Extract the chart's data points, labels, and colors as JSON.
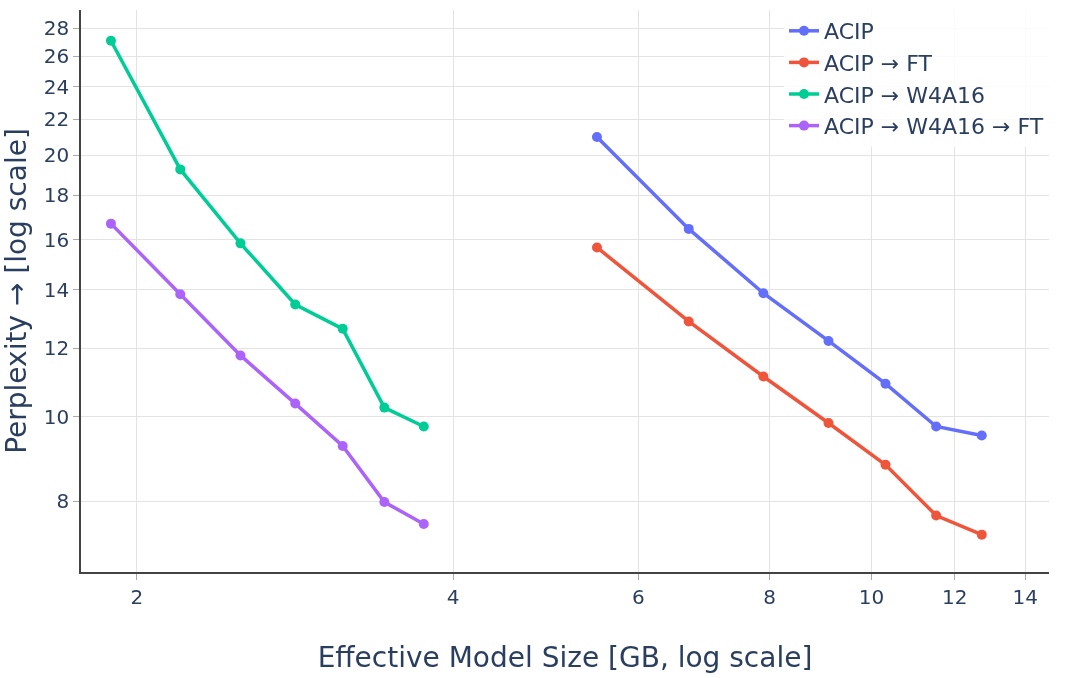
{
  "chart_data": {
    "type": "line",
    "xlabel": "Effective Model Size [GB, log scale]",
    "ylabel": "Perplexity → [log scale]",
    "log": "xy",
    "grid": true,
    "legend": "top right",
    "marker": "circle",
    "line_style": "solid",
    "xlim": [
      1.77,
      14.75
    ],
    "xticks": [
      2,
      4,
      6,
      8,
      10,
      12,
      14
    ],
    "ylim": [
      6.63,
      29.4
    ],
    "yticks": [
      8,
      10,
      12,
      14,
      16,
      18,
      20,
      22,
      24,
      26,
      28
    ],
    "series": [
      {
        "name": "ACIP",
        "color": "#636efa",
        "x": [
          5.48,
          6.7,
          7.89,
          9.1,
          10.31,
          11.52,
          12.73
        ],
        "values": [
          21.0,
          16.46,
          13.88,
          12.23,
          10.92,
          9.75,
          9.52
        ]
      },
      {
        "name": "ACIP → FT",
        "color": "#ef553b",
        "x": [
          5.48,
          6.7,
          7.89,
          9.1,
          10.31,
          11.52,
          12.73
        ],
        "values": [
          15.67,
          12.88,
          11.13,
          9.84,
          8.81,
          7.7,
          7.32
        ]
      },
      {
        "name": "ACIP → W4A16",
        "color": "#00cc96",
        "x": [
          1.89,
          2.2,
          2.51,
          2.83,
          3.14,
          3.44,
          3.75
        ],
        "values": [
          27.1,
          19.27,
          15.84,
          13.47,
          12.63,
          10.25,
          9.75
        ]
      },
      {
        "name": "ACIP → W4A16 → FT",
        "color": "#ab63fa",
        "x": [
          1.89,
          2.2,
          2.51,
          2.83,
          3.14,
          3.44,
          3.75
        ],
        "values": [
          16.69,
          13.84,
          11.77,
          10.36,
          9.26,
          7.98,
          7.53
        ]
      }
    ]
  }
}
